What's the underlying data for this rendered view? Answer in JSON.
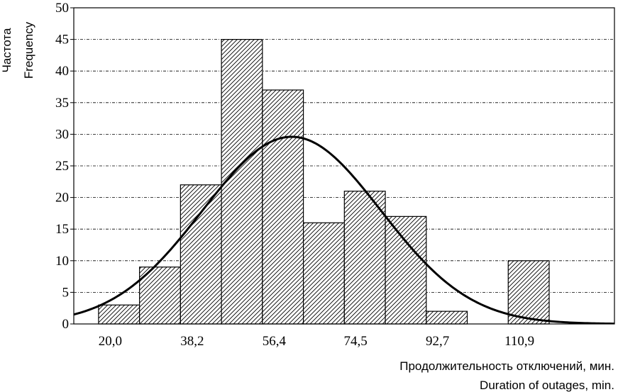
{
  "chart_data": {
    "type": "bar",
    "subtype": "histogram",
    "ylabel_lines": [
      "Частота",
      "Frequency"
    ],
    "xlabel_lines": [
      "Продолжительность отключений, мин.",
      "Duration of outages, min."
    ],
    "ylim": [
      0,
      50
    ],
    "yticks": [
      0,
      5,
      10,
      15,
      20,
      25,
      30,
      35,
      40,
      45,
      50
    ],
    "xlim": [
      11.9,
      132.0
    ],
    "xtick_values": [
      20.0,
      38.2,
      56.4,
      74.5,
      92.7,
      110.9
    ],
    "xtick_labels": [
      "20,0",
      "38,2",
      "56,4",
      "74,5",
      "92,7",
      "110,9"
    ],
    "bins": [
      {
        "start": 17.4,
        "end": 26.5,
        "value": 3
      },
      {
        "start": 26.5,
        "end": 35.6,
        "value": 9
      },
      {
        "start": 35.6,
        "end": 44.7,
        "value": 22
      },
      {
        "start": 44.7,
        "end": 53.8,
        "value": 45
      },
      {
        "start": 53.8,
        "end": 62.9,
        "value": 37
      },
      {
        "start": 62.9,
        "end": 72.0,
        "value": 16
      },
      {
        "start": 72.0,
        "end": 81.1,
        "value": 21
      },
      {
        "start": 81.1,
        "end": 90.2,
        "value": 17
      },
      {
        "start": 90.2,
        "end": 99.3,
        "value": 2
      },
      {
        "start": 99.3,
        "end": 108.4,
        "value": 0
      },
      {
        "start": 108.4,
        "end": 117.5,
        "value": 10
      }
    ],
    "normal_curve": {
      "peak": 29.6,
      "mean": 60.3,
      "sd": 19.8
    },
    "grid": true,
    "bar_fill": "diagonal-hatch",
    "colors": {
      "bar_stroke": "#000000",
      "hatch": "#000000",
      "grid": "#000000",
      "curve": "#000000"
    }
  }
}
